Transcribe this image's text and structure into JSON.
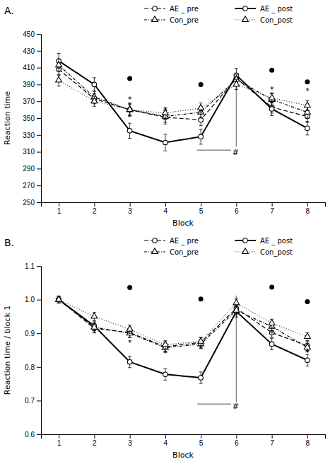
{
  "chart_data": [
    {
      "type": "line",
      "title": "A.",
      "x": [
        1,
        2,
        3,
        4,
        5,
        6,
        7,
        8
      ],
      "xlim": [
        0.5,
        8.5
      ],
      "xticks": [
        1,
        2,
        3,
        4,
        5,
        6,
        7,
        8
      ],
      "xlabel": "Block",
      "ylabel": "Reaction time",
      "ylim": [
        250,
        450
      ],
      "yticks": [
        250,
        270,
        290,
        310,
        330,
        350,
        370,
        390,
        410,
        430,
        450
      ],
      "legend": "upper right",
      "series": [
        {
          "name": "AE _ pre",
          "color": "#000000",
          "marker": "circle",
          "line_style": "dashed",
          "values": [
            408,
            373,
            360,
            351,
            348,
            397,
            363,
            352
          ],
          "errors": [
            7,
            6,
            8,
            8,
            7,
            6,
            7,
            7
          ]
        },
        {
          "name": "AE _ post",
          "color": "#000000",
          "marker": "circle",
          "line_style": "solid",
          "values": [
            418,
            390,
            335,
            321,
            328,
            401,
            361,
            338
          ],
          "errors": [
            9,
            8,
            9,
            10,
            9,
            8,
            8,
            8
          ]
        },
        {
          "name": "Con_pre",
          "color": "#000000",
          "marker": "triangle",
          "line_style": "dashdot",
          "values": [
            413,
            375,
            360,
            352,
            357,
            396,
            372,
            357
          ],
          "errors": [
            7,
            7,
            7,
            7,
            7,
            6,
            7,
            7
          ]
        },
        {
          "name": "Con_post",
          "color": "#000000",
          "marker": "triangle",
          "line_style": "dotted",
          "values": [
            395,
            370,
            360,
            356,
            362,
            390,
            374,
            365
          ],
          "errors": [
            7,
            6,
            6,
            6,
            6,
            6,
            6,
            6
          ]
        }
      ],
      "points": {
        "color": "#000000",
        "x": [
          3,
          5,
          7,
          8
        ],
        "y": [
          397,
          390,
          407,
          393
        ]
      },
      "lines": [
        {
          "color": "#888888",
          "x": [
            4.9,
            5.85
          ],
          "y": [
            312,
            312
          ]
        },
        {
          "color": "#888888",
          "x": [
            6.0,
            6.0
          ],
          "y": [
            316,
            404
          ]
        }
      ],
      "annotations": [
        {
          "text": "*",
          "x": 3,
          "y": 372
        },
        {
          "text": "*",
          "x": 4,
          "y": 360
        },
        {
          "text": "*",
          "x": 5,
          "y": 357
        },
        {
          "text": "*",
          "x": 7,
          "y": 384
        },
        {
          "text": "*",
          "x": 8,
          "y": 382
        },
        {
          "text": "#",
          "x": 5.98,
          "y": 309
        }
      ]
    },
    {
      "type": "line",
      "title": "B.",
      "x": [
        1,
        2,
        3,
        4,
        5,
        6,
        7,
        8
      ],
      "xlim": [
        0.5,
        8.5
      ],
      "xticks": [
        1,
        2,
        3,
        4,
        5,
        6,
        7,
        8
      ],
      "xlabel": "Block",
      "ylabel": "Reaction time / block 1",
      "ylim": [
        0.6,
        1.1
      ],
      "yticks": [
        0.6,
        0.7,
        0.8,
        0.9,
        {
          "value": 1.0,
          "label": "1.0"
        },
        1.1
      ],
      "legend": "upper right",
      "series": [
        {
          "name": "AE _ pre",
          "color": "#000000",
          "marker": "circle",
          "line_style": "dashed",
          "values": [
            1.0,
            0.915,
            0.902,
            0.86,
            0.873,
            0.974,
            0.902,
            0.863
          ],
          "errors": [
            0.01,
            0.014,
            0.014,
            0.014,
            0.014,
            0.014,
            0.014,
            0.014
          ]
        },
        {
          "name": "AE _ post",
          "color": "#000000",
          "marker": "circle",
          "line_style": "solid",
          "values": [
            1.0,
            0.922,
            0.815,
            0.778,
            0.768,
            0.965,
            0.868,
            0.82
          ],
          "errors": [
            0.01,
            0.014,
            0.017,
            0.017,
            0.017,
            0.017,
            0.017,
            0.017
          ]
        },
        {
          "name": "Con_pre",
          "color": "#000000",
          "marker": "triangle",
          "line_style": "dashdot",
          "values": [
            1.0,
            0.918,
            0.9,
            0.857,
            0.868,
            0.968,
            0.92,
            0.858
          ],
          "errors": [
            0.01,
            0.014,
            0.013,
            0.013,
            0.013,
            0.013,
            0.013,
            0.013
          ]
        },
        {
          "name": "Con_post",
          "color": "#000000",
          "marker": "triangle",
          "line_style": "dotted",
          "values": [
            1.0,
            0.95,
            0.912,
            0.866,
            0.876,
            0.99,
            0.93,
            0.89
          ],
          "errors": [
            0.01,
            0.012,
            0.012,
            0.012,
            0.012,
            0.012,
            0.012,
            0.012
          ]
        }
      ],
      "points": {
        "color": "#000000",
        "x": [
          3,
          5,
          7,
          8
        ],
        "y": [
          1.036,
          1.002,
          1.037,
          0.994
        ]
      },
      "lines": [
        {
          "color": "#888888",
          "x": [
            4.9,
            5.85
          ],
          "y": [
            0.69,
            0.69
          ]
        },
        {
          "color": "#888888",
          "x": [
            6.0,
            6.0
          ],
          "y": [
            0.695,
            1.012
          ]
        }
      ],
      "annotations": [
        {
          "text": "*",
          "x": 3,
          "y": 0.872
        },
        {
          "text": "*",
          "x": 4,
          "y": 0.84
        },
        {
          "text": "*",
          "x": 5,
          "y": 0.854
        },
        {
          "text": "*",
          "x": 7,
          "y": 0.899
        },
        {
          "text": "*",
          "x": 8,
          "y": 0.843
        },
        {
          "text": "#",
          "x": 5.98,
          "y": 0.684
        }
      ]
    }
  ]
}
